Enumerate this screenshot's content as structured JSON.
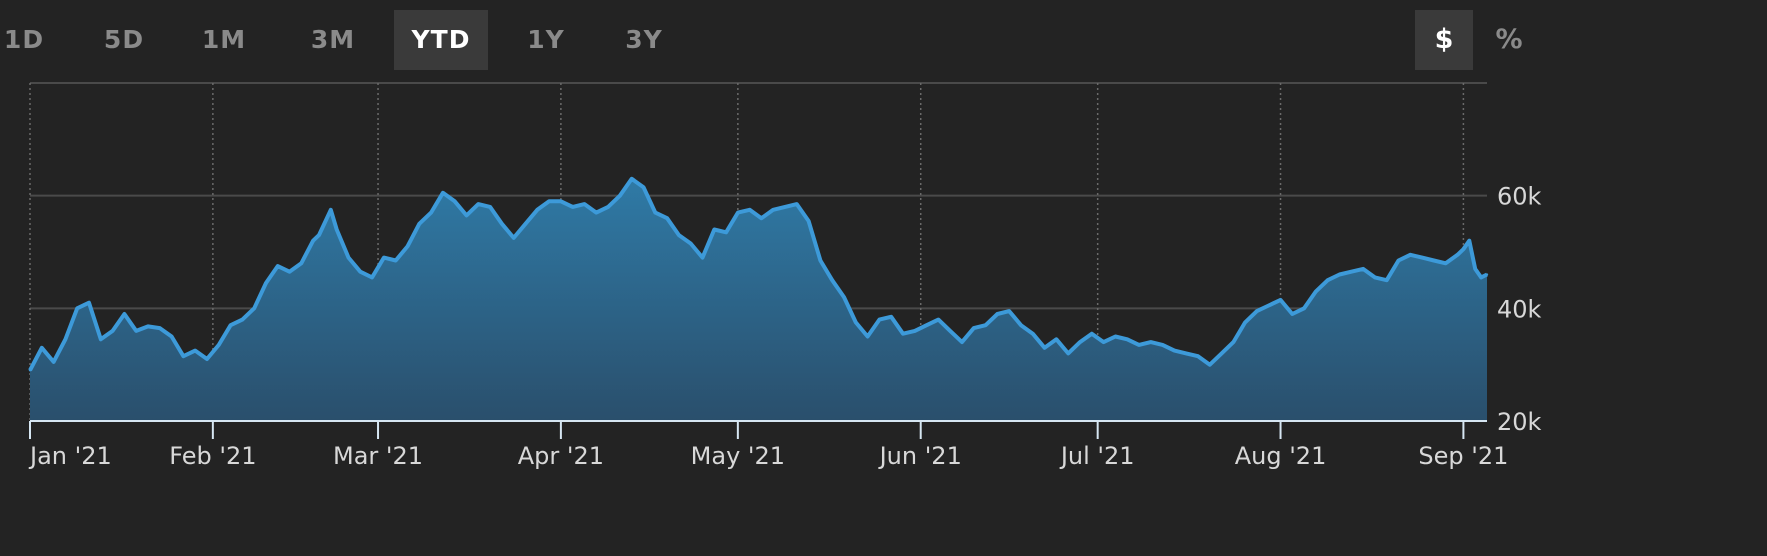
{
  "range_buttons": [
    {
      "label": "1D",
      "active": false
    },
    {
      "label": "5D",
      "active": false
    },
    {
      "label": "1M",
      "active": false
    },
    {
      "label": "3M",
      "active": false
    },
    {
      "label": "YTD",
      "active": true
    },
    {
      "label": "1Y",
      "active": false
    },
    {
      "label": "3Y",
      "active": false
    }
  ],
  "unit_buttons": [
    {
      "label": "$",
      "active": true
    },
    {
      "label": "%",
      "active": false
    }
  ],
  "colors": {
    "background": "#232323",
    "line": "#3d9ad9",
    "fill_top": "#2f7aa6",
    "fill_bottom": "#2a4f6c",
    "grid": "#4a4a4a",
    "axis": "#d6e6f2"
  },
  "chart_data": {
    "type": "area",
    "title": "",
    "xlabel": "",
    "ylabel": "",
    "ylim": [
      20000,
      80000
    ],
    "y_ticks": [
      {
        "value": 20000,
        "label": "20k"
      },
      {
        "value": 40000,
        "label": "40k"
      },
      {
        "value": 60000,
        "label": "60k"
      }
    ],
    "xlim": [
      "2021-01-01",
      "2021-09-05"
    ],
    "x_ticks": [
      {
        "date": "2021-01-01",
        "label": "Jan '21"
      },
      {
        "date": "2021-02-01",
        "label": "Feb '21"
      },
      {
        "date": "2021-03-01",
        "label": "Mar '21"
      },
      {
        "date": "2021-04-01",
        "label": "Apr '21"
      },
      {
        "date": "2021-05-01",
        "label": "May '21"
      },
      {
        "date": "2021-06-01",
        "label": "Jun '21"
      },
      {
        "date": "2021-07-01",
        "label": "Jul '21"
      },
      {
        "date": "2021-08-01",
        "label": "Aug '21"
      },
      {
        "date": "2021-09-01",
        "label": "Sep '21"
      }
    ],
    "grid": true,
    "series": [
      {
        "points": [
          [
            "2021-01-01",
            29000
          ],
          [
            "2021-01-03",
            33000
          ],
          [
            "2021-01-05",
            30500
          ],
          [
            "2021-01-07",
            34500
          ],
          [
            "2021-01-09",
            40000
          ],
          [
            "2021-01-11",
            41000
          ],
          [
            "2021-01-13",
            34500
          ],
          [
            "2021-01-15",
            36000
          ],
          [
            "2021-01-17",
            39000
          ],
          [
            "2021-01-19",
            36000
          ],
          [
            "2021-01-21",
            36800
          ],
          [
            "2021-01-23",
            36500
          ],
          [
            "2021-01-25",
            35000
          ],
          [
            "2021-01-27",
            31500
          ],
          [
            "2021-01-29",
            32500
          ],
          [
            "2021-01-31",
            31000
          ],
          [
            "2021-02-02",
            33500
          ],
          [
            "2021-02-04",
            37000
          ],
          [
            "2021-02-06",
            38000
          ],
          [
            "2021-02-08",
            40000
          ],
          [
            "2021-02-10",
            44500
          ],
          [
            "2021-02-12",
            47500
          ],
          [
            "2021-02-14",
            46500
          ],
          [
            "2021-02-16",
            48000
          ],
          [
            "2021-02-18",
            52000
          ],
          [
            "2021-02-19",
            53000
          ],
          [
            "2021-02-21",
            57500
          ],
          [
            "2021-02-22",
            54000
          ],
          [
            "2021-02-24",
            49000
          ],
          [
            "2021-02-26",
            46500
          ],
          [
            "2021-02-28",
            45500
          ],
          [
            "2021-03-02",
            49000
          ],
          [
            "2021-03-04",
            48500
          ],
          [
            "2021-03-06",
            51000
          ],
          [
            "2021-03-08",
            55000
          ],
          [
            "2021-03-10",
            57000
          ],
          [
            "2021-03-12",
            60500
          ],
          [
            "2021-03-14",
            59000
          ],
          [
            "2021-03-16",
            56500
          ],
          [
            "2021-03-18",
            58500
          ],
          [
            "2021-03-20",
            58000
          ],
          [
            "2021-03-22",
            55000
          ],
          [
            "2021-03-24",
            52500
          ],
          [
            "2021-03-26",
            55000
          ],
          [
            "2021-03-28",
            57500
          ],
          [
            "2021-03-30",
            59000
          ],
          [
            "2021-04-01",
            59000
          ],
          [
            "2021-04-03",
            58000
          ],
          [
            "2021-04-05",
            58500
          ],
          [
            "2021-04-07",
            57000
          ],
          [
            "2021-04-09",
            58000
          ],
          [
            "2021-04-11",
            60000
          ],
          [
            "2021-04-13",
            63000
          ],
          [
            "2021-04-15",
            61500
          ],
          [
            "2021-04-17",
            57000
          ],
          [
            "2021-04-19",
            56000
          ],
          [
            "2021-04-21",
            53000
          ],
          [
            "2021-04-23",
            51500
          ],
          [
            "2021-04-25",
            49000
          ],
          [
            "2021-04-27",
            54000
          ],
          [
            "2021-04-29",
            53500
          ],
          [
            "2021-05-01",
            57000
          ],
          [
            "2021-05-03",
            57500
          ],
          [
            "2021-05-05",
            56000
          ],
          [
            "2021-05-07",
            57500
          ],
          [
            "2021-05-09",
            58000
          ],
          [
            "2021-05-11",
            58500
          ],
          [
            "2021-05-13",
            55500
          ],
          [
            "2021-05-15",
            48500
          ],
          [
            "2021-05-17",
            45000
          ],
          [
            "2021-05-19",
            42000
          ],
          [
            "2021-05-21",
            37500
          ],
          [
            "2021-05-23",
            35000
          ],
          [
            "2021-05-25",
            38000
          ],
          [
            "2021-05-27",
            38500
          ],
          [
            "2021-05-29",
            35500
          ],
          [
            "2021-05-31",
            36000
          ],
          [
            "2021-06-02",
            37000
          ],
          [
            "2021-06-04",
            38000
          ],
          [
            "2021-06-06",
            36000
          ],
          [
            "2021-06-08",
            34000
          ],
          [
            "2021-06-10",
            36500
          ],
          [
            "2021-06-12",
            37000
          ],
          [
            "2021-06-14",
            39000
          ],
          [
            "2021-06-16",
            39500
          ],
          [
            "2021-06-18",
            37000
          ],
          [
            "2021-06-20",
            35500
          ],
          [
            "2021-06-22",
            33000
          ],
          [
            "2021-06-24",
            34500
          ],
          [
            "2021-06-26",
            32000
          ],
          [
            "2021-06-28",
            34000
          ],
          [
            "2021-06-30",
            35500
          ],
          [
            "2021-07-02",
            34000
          ],
          [
            "2021-07-04",
            35000
          ],
          [
            "2021-07-06",
            34500
          ],
          [
            "2021-07-08",
            33500
          ],
          [
            "2021-07-10",
            34000
          ],
          [
            "2021-07-12",
            33500
          ],
          [
            "2021-07-14",
            32500
          ],
          [
            "2021-07-16",
            32000
          ],
          [
            "2021-07-18",
            31500
          ],
          [
            "2021-07-20",
            30000
          ],
          [
            "2021-07-22",
            32000
          ],
          [
            "2021-07-24",
            34000
          ],
          [
            "2021-07-26",
            37500
          ],
          [
            "2021-07-28",
            39500
          ],
          [
            "2021-07-30",
            40500
          ],
          [
            "2021-08-01",
            41500
          ],
          [
            "2021-08-03",
            39000
          ],
          [
            "2021-08-05",
            40000
          ],
          [
            "2021-08-07",
            43000
          ],
          [
            "2021-08-09",
            45000
          ],
          [
            "2021-08-11",
            46000
          ],
          [
            "2021-08-13",
            46500
          ],
          [
            "2021-08-15",
            47000
          ],
          [
            "2021-08-17",
            45500
          ],
          [
            "2021-08-19",
            45000
          ],
          [
            "2021-08-21",
            48500
          ],
          [
            "2021-08-23",
            49500
          ],
          [
            "2021-08-25",
            49000
          ],
          [
            "2021-08-27",
            48500
          ],
          [
            "2021-08-29",
            48000
          ],
          [
            "2021-08-31",
            49500
          ],
          [
            "2021-09-01",
            50500
          ],
          [
            "2021-09-02",
            52000
          ],
          [
            "2021-09-03",
            47000
          ],
          [
            "2021-09-04",
            45500
          ],
          [
            "2021-09-05",
            46000
          ]
        ]
      }
    ]
  }
}
